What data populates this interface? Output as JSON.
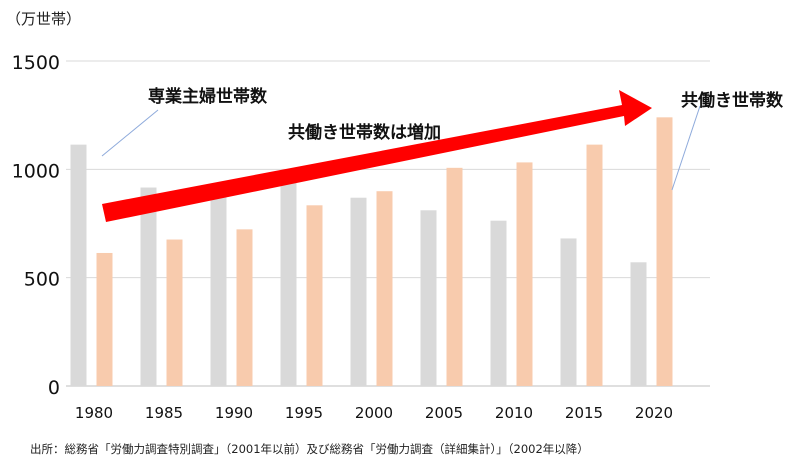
{
  "chart_data": {
    "type": "bar",
    "unit_label": "（万世帯）",
    "categories": [
      "1980",
      "1985",
      "1990",
      "1995",
      "2000",
      "2005",
      "2010",
      "2015",
      "2020"
    ],
    "series": [
      {
        "name": "専業主婦世帯数",
        "color": "#d9d9d9",
        "values": [
          1114,
          916,
          897,
          955,
          869,
          811,
          763,
          681,
          571
        ]
      },
      {
        "name": "共働き世帯数",
        "color": "#f8cbad",
        "values": [
          614,
          676,
          723,
          834,
          899,
          1007,
          1032,
          1114,
          1240
        ]
      }
    ],
    "ylim": [
      0,
      1500
    ],
    "yticks": [
      0,
      500,
      1000,
      1500
    ],
    "grid": true,
    "annotations": {
      "trend_text": "共働き世帯数は増加",
      "trend_color": "#ff0000"
    },
    "source": "出所：総務省「労働力調査特別調査」（2001年以前）及び総務省「労働力調査（詳細集計）」（2002年以降）"
  }
}
